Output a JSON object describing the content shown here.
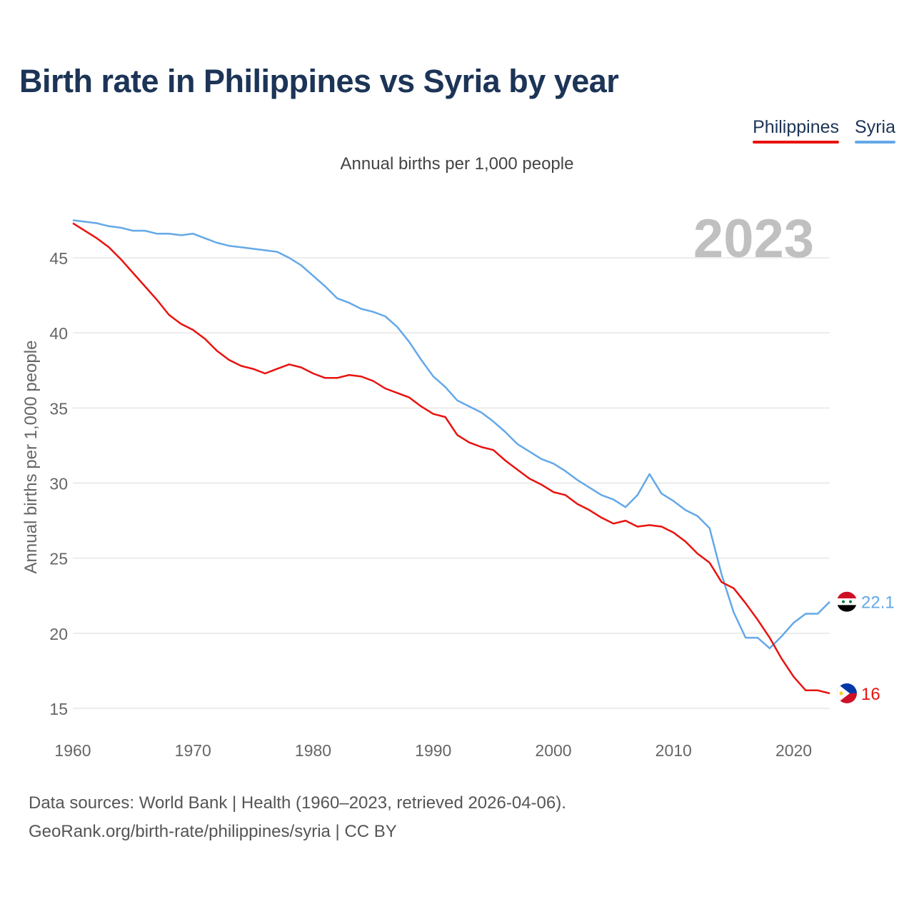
{
  "title": "Birth rate in Philippines vs Syria by year",
  "subtitle": "Annual births per 1,000 people",
  "year_watermark": "2023",
  "legend": [
    {
      "label": "Philippines",
      "color": "#e8130f"
    },
    {
      "label": "Syria",
      "color": "#64a8e8"
    }
  ],
  "footer": {
    "line1": "Data sources: World Bank | Health (1960–2023, retrieved 2026-04-06).",
    "line2": "GeoRank.org/birth-rate/philippines/syria | CC BY"
  },
  "chart_data": {
    "type": "line",
    "title": "Birth rate in Philippines vs Syria by year",
    "xlabel": "",
    "ylabel": "Annual births per 1,000 people",
    "xlim": [
      1960,
      2023
    ],
    "ylim": [
      14,
      48
    ],
    "x_ticks": [
      1960,
      1970,
      1980,
      1990,
      2000,
      2010,
      2020
    ],
    "y_ticks": [
      15,
      20,
      25,
      30,
      35,
      40,
      45
    ],
    "grid": true,
    "legend_position": "top-right",
    "x": [
      1960,
      1961,
      1962,
      1963,
      1964,
      1965,
      1966,
      1967,
      1968,
      1969,
      1970,
      1971,
      1972,
      1973,
      1974,
      1975,
      1976,
      1977,
      1978,
      1979,
      1980,
      1981,
      1982,
      1983,
      1984,
      1985,
      1986,
      1987,
      1988,
      1989,
      1990,
      1991,
      1992,
      1993,
      1994,
      1995,
      1996,
      1997,
      1998,
      1999,
      2000,
      2001,
      2002,
      2003,
      2004,
      2005,
      2006,
      2007,
      2008,
      2009,
      2010,
      2011,
      2012,
      2013,
      2014,
      2015,
      2016,
      2017,
      2018,
      2019,
      2020,
      2021,
      2022,
      2023
    ],
    "series": [
      {
        "name": "Philippines",
        "color": "#e8130f",
        "end_label": "16",
        "values": [
          47.3,
          46.8,
          46.3,
          45.7,
          44.9,
          44.0,
          43.1,
          42.2,
          41.2,
          40.6,
          40.2,
          39.6,
          38.8,
          38.2,
          37.8,
          37.6,
          37.3,
          37.6,
          37.9,
          37.7,
          37.3,
          37.0,
          37.0,
          37.2,
          37.1,
          36.8,
          36.3,
          36.0,
          35.7,
          35.1,
          34.6,
          34.4,
          33.2,
          32.7,
          32.4,
          32.2,
          31.5,
          30.9,
          30.3,
          29.9,
          29.4,
          29.2,
          28.6,
          28.2,
          27.7,
          27.3,
          27.5,
          27.1,
          27.2,
          27.1,
          26.7,
          26.1,
          25.3,
          24.7,
          23.4,
          23.0,
          22.0,
          20.9,
          19.7,
          18.3,
          17.1,
          16.2,
          16.2,
          16.0
        ]
      },
      {
        "name": "Syria",
        "color": "#64a8e8",
        "end_label": "22.1",
        "values": [
          47.5,
          47.4,
          47.3,
          47.1,
          47.0,
          46.8,
          46.8,
          46.6,
          46.6,
          46.5,
          46.6,
          46.3,
          46.0,
          45.8,
          45.7,
          45.6,
          45.5,
          45.4,
          45.0,
          44.5,
          43.8,
          43.1,
          42.3,
          42.0,
          41.6,
          41.4,
          41.1,
          40.4,
          39.4,
          38.2,
          37.1,
          36.4,
          35.5,
          35.1,
          34.7,
          34.1,
          33.4,
          32.6,
          32.1,
          31.6,
          31.3,
          30.8,
          30.2,
          29.7,
          29.2,
          28.9,
          28.4,
          29.2,
          30.6,
          29.3,
          28.8,
          28.2,
          27.8,
          27.0,
          23.9,
          21.4,
          19.7,
          19.7,
          19.0,
          19.8,
          20.7,
          21.3,
          21.3,
          22.1
        ]
      }
    ]
  }
}
